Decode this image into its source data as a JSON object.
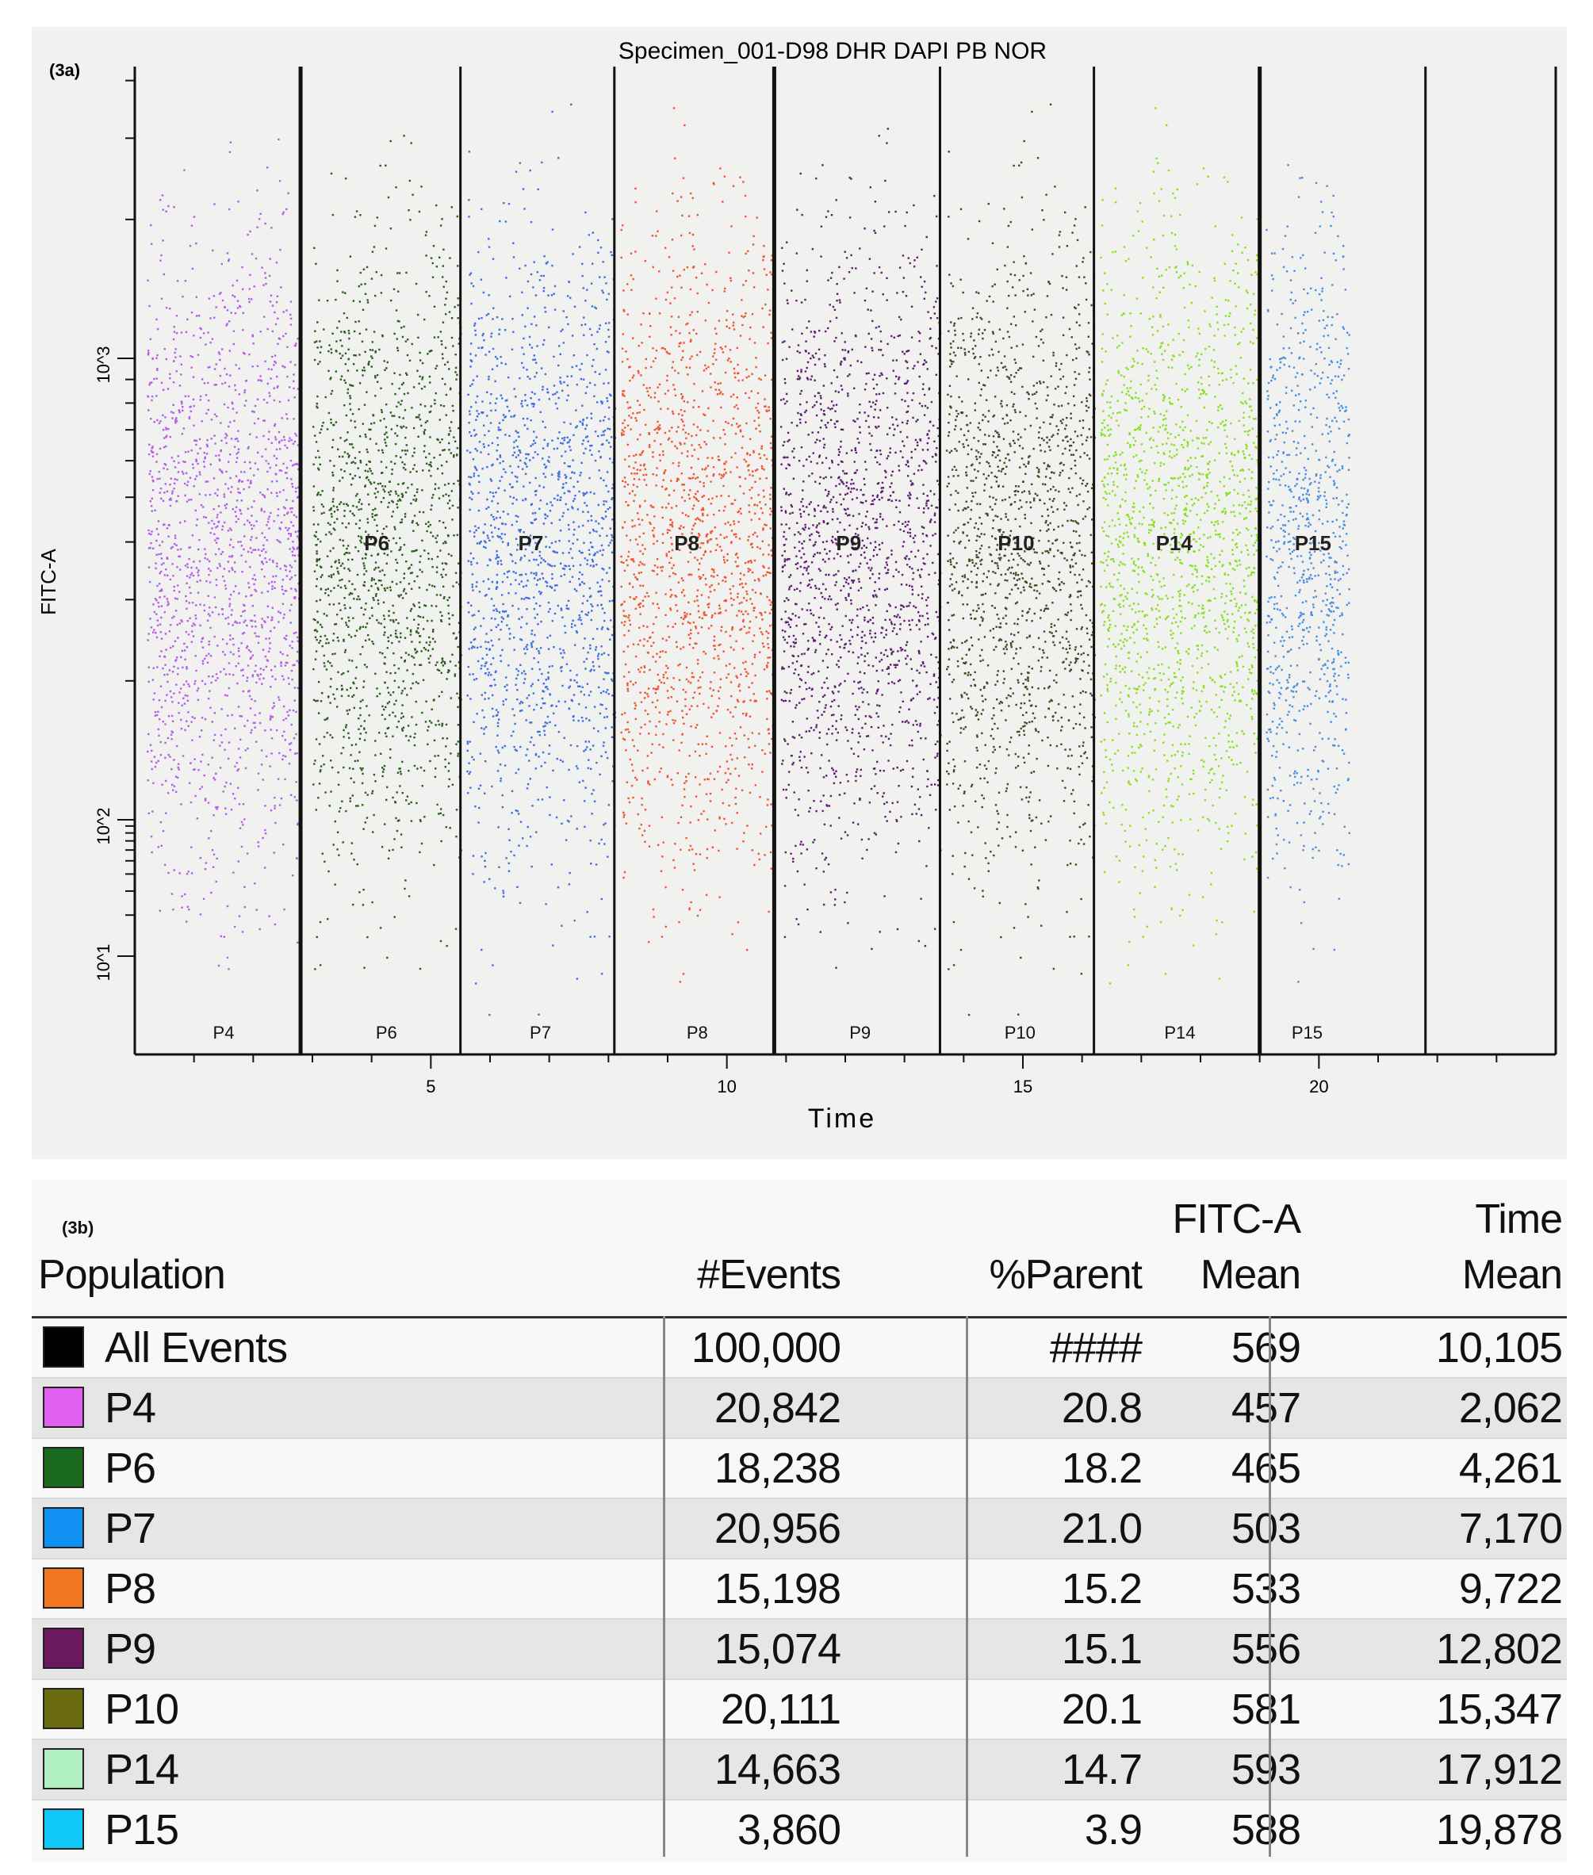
{
  "panel_a": {
    "label": "(3a)",
    "title": "Specimen_001-D98 DHR DAPI PB NOR",
    "xlabel": "Time",
    "ylabel": "FITC-A"
  },
  "chart_data": {
    "type": "scatter",
    "title": "Specimen_001-D98 DHR DAPI PB NOR",
    "xlabel": "Time",
    "ylabel": "FITC-A",
    "xlim": [
      0,
      24
    ],
    "x_ticks": [
      5,
      10,
      15,
      20
    ],
    "y_scale": "log",
    "y_tick_labels": [
      "10^1",
      "10^2",
      "10^3"
    ],
    "gate_boundaries": [
      2.8,
      5.5,
      8.1,
      10.8,
      13.6,
      16.2,
      19.0,
      21.8
    ],
    "series": [
      {
        "name": "P4",
        "color": "#b45ee8",
        "x_range": [
          0.2,
          2.8
        ],
        "gate_label_inside": "",
        "gate_label_bottom": "P4"
      },
      {
        "name": "P6",
        "color": "#2a5e1c",
        "x_range": [
          3.0,
          5.5
        ],
        "gate_label_inside": "P6",
        "gate_label_bottom": "P6"
      },
      {
        "name": "P7",
        "color": "#3e6ee0",
        "x_range": [
          5.6,
          8.1
        ],
        "gate_label_inside": "P7",
        "gate_label_bottom": "P7"
      },
      {
        "name": "P8",
        "color": "#ee5530",
        "x_range": [
          8.2,
          10.8
        ],
        "gate_label_inside": "P8",
        "gate_label_bottom": "P8"
      },
      {
        "name": "P9",
        "color": "#5e1e70",
        "x_range": [
          10.9,
          13.6
        ],
        "gate_label_inside": "P9",
        "gate_label_bottom": "P9"
      },
      {
        "name": "P10",
        "color": "#4a4420",
        "x_range": [
          13.7,
          16.2
        ],
        "gate_label_inside": "P10",
        "gate_label_bottom": "P10"
      },
      {
        "name": "P14",
        "color": "#86e020",
        "x_range": [
          16.3,
          19.0
        ],
        "gate_label_inside": "P14",
        "gate_label_bottom": "P14"
      },
      {
        "name": "P15",
        "color": "#4a8ee0",
        "x_range": [
          19.1,
          20.5
        ],
        "gate_label_inside": "P15",
        "gate_label_bottom": "P15"
      }
    ]
  },
  "panel_b": {
    "label": "(3b)",
    "headers": {
      "population": "Population",
      "events": "#Events",
      "parent": "%Parent",
      "fitc_top": "FITC-A",
      "fitc_bottom": "Mean",
      "time_top": "Time",
      "time_bottom": "Mean"
    },
    "rows": [
      {
        "name": "All Events",
        "color": "#000000",
        "events": "100,000",
        "parent": "####",
        "fitc_mean": "569",
        "time_mean": "10,105"
      },
      {
        "name": "P4",
        "color": "#e060f0",
        "events": "20,842",
        "parent": "20.8",
        "fitc_mean": "457",
        "time_mean": "2,062"
      },
      {
        "name": "P6",
        "color": "#1a6a20",
        "events": "18,238",
        "parent": "18.2",
        "fitc_mean": "465",
        "time_mean": "4,261"
      },
      {
        "name": "P7",
        "color": "#1090f0",
        "events": "20,956",
        "parent": "21.0",
        "fitc_mean": "503",
        "time_mean": "7,170"
      },
      {
        "name": "P8",
        "color": "#f07820",
        "events": "15,198",
        "parent": "15.2",
        "fitc_mean": "533",
        "time_mean": "9,722"
      },
      {
        "name": "P9",
        "color": "#6a1860",
        "events": "15,074",
        "parent": "15.1",
        "fitc_mean": "556",
        "time_mean": "12,802"
      },
      {
        "name": "P10",
        "color": "#6a6a10",
        "events": "20,111",
        "parent": "20.1",
        "fitc_mean": "581",
        "time_mean": "15,347"
      },
      {
        "name": "P14",
        "color": "#b0f0c0",
        "events": "14,663",
        "parent": "14.7",
        "fitc_mean": "593",
        "time_mean": "17,912"
      },
      {
        "name": "P15",
        "color": "#10c8f8",
        "events": "3,860",
        "parent": "3.9",
        "fitc_mean": "588",
        "time_mean": "19,878"
      }
    ]
  }
}
